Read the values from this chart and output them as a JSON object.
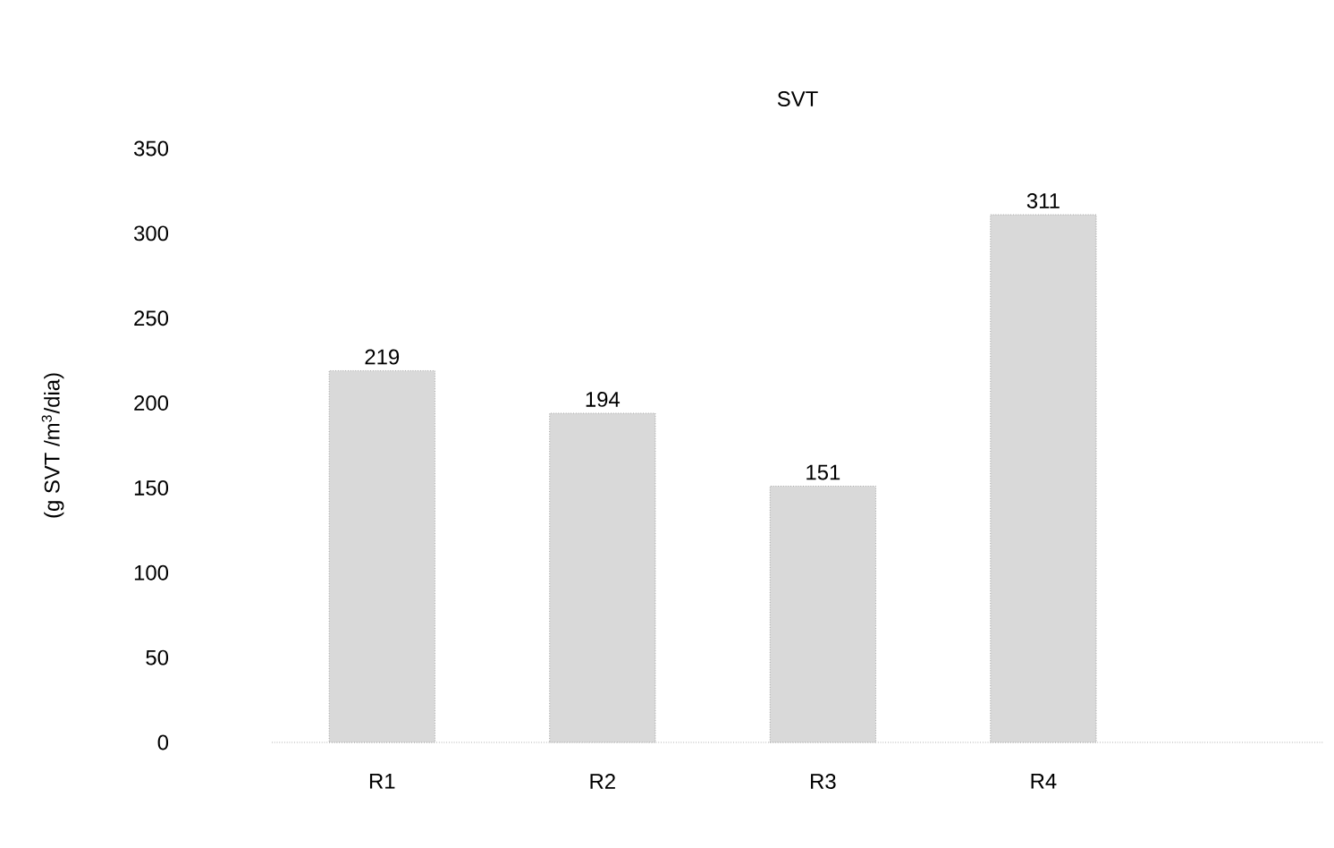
{
  "chart_data": {
    "type": "bar",
    "title": "SVT",
    "ylabel": "(g SVT /m$^{3}$/dia)",
    "categories": [
      "R1",
      "R2",
      "R3",
      "R4"
    ],
    "values": [
      219,
      194,
      151,
      311
    ],
    "color": "#d9d9d9",
    "ylim": [
      0,
      350
    ],
    "yticks": [
      0,
      50,
      100,
      150,
      200,
      250,
      300,
      350
    ],
    "data_labels": true,
    "grid": false
  }
}
